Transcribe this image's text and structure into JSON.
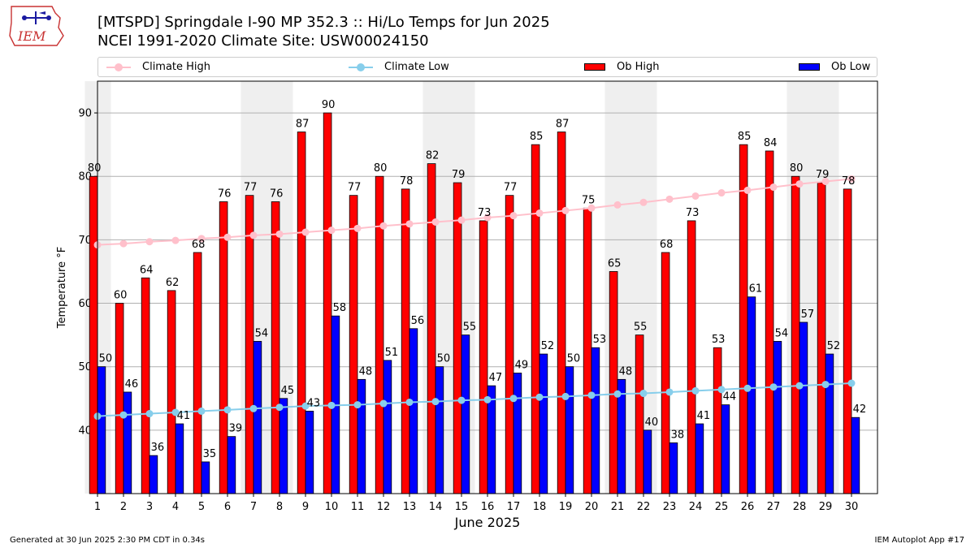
{
  "header": {
    "logo_text": "IEM",
    "title_line1": "[MTSPD] Springdale I-90 MP 352.3 :: Hi/Lo Temps for Jun 2025",
    "title_line2": "NCEI 1991-2020 Climate Site: USW00024150"
  },
  "legend": {
    "placement": "top",
    "items": [
      {
        "label": "Climate High",
        "type": "line",
        "color": "#ffc0cb"
      },
      {
        "label": "Climate Low",
        "type": "line",
        "color": "#87ceeb"
      },
      {
        "label": "Ob High",
        "type": "bar",
        "color": "#ff0000"
      },
      {
        "label": "Ob Low",
        "type": "bar",
        "color": "#0000ff"
      }
    ]
  },
  "footer": {
    "left": "Generated at 30 Jun 2025 2:30 PM CDT in 0.34s",
    "right": "IEM Autoplot App #17"
  },
  "chart_data": {
    "type": "bar",
    "xlabel": "June 2025",
    "ylabel": "Temperature °F",
    "ylim": [
      30,
      95
    ],
    "yticks": [
      40,
      50,
      60,
      70,
      80,
      90
    ],
    "grid": "horizontal",
    "categories": [
      "1",
      "2",
      "3",
      "4",
      "5",
      "6",
      "7",
      "8",
      "9",
      "10",
      "11",
      "12",
      "13",
      "14",
      "15",
      "16",
      "17",
      "18",
      "19",
      "20",
      "21",
      "22",
      "23",
      "24",
      "25",
      "26",
      "27",
      "28",
      "29",
      "30"
    ],
    "weekend_days": [
      1,
      7,
      8,
      14,
      15,
      21,
      22,
      28,
      29
    ],
    "series": [
      {
        "name": "Ob High",
        "kind": "bar",
        "color": "#ff0000",
        "values": [
          80,
          60,
          64,
          62,
          68,
          76,
          77,
          76,
          87,
          90,
          77,
          80,
          78,
          82,
          79,
          73,
          77,
          85,
          87,
          75,
          65,
          55,
          68,
          73,
          53,
          85,
          84,
          80,
          79,
          78
        ]
      },
      {
        "name": "Ob Low",
        "kind": "bar",
        "color": "#0000ff",
        "values": [
          50,
          46,
          36,
          41,
          35,
          39,
          54,
          45,
          43,
          58,
          48,
          51,
          56,
          50,
          55,
          47,
          49,
          52,
          50,
          53,
          48,
          40,
          38,
          41,
          44,
          61,
          54,
          57,
          52,
          42
        ]
      },
      {
        "name": "Climate High",
        "kind": "line",
        "color": "#ffc0cb",
        "values": [
          69.2,
          69.4,
          69.7,
          69.9,
          70.2,
          70.4,
          70.7,
          70.9,
          71.2,
          71.5,
          71.8,
          72.2,
          72.5,
          72.8,
          73.1,
          73.5,
          73.8,
          74.2,
          74.6,
          75.0,
          75.5,
          75.9,
          76.4,
          76.9,
          77.4,
          77.8,
          78.3,
          78.8,
          79.2,
          79.6
        ]
      },
      {
        "name": "Climate Low",
        "kind": "line",
        "color": "#87ceeb",
        "values": [
          42.2,
          42.4,
          42.6,
          42.8,
          43.0,
          43.2,
          43.4,
          43.6,
          43.8,
          43.9,
          44.0,
          44.2,
          44.4,
          44.5,
          44.7,
          44.8,
          45.0,
          45.2,
          45.3,
          45.5,
          45.7,
          45.8,
          46.0,
          46.2,
          46.4,
          46.6,
          46.8,
          47.0,
          47.2,
          47.4
        ]
      }
    ]
  }
}
